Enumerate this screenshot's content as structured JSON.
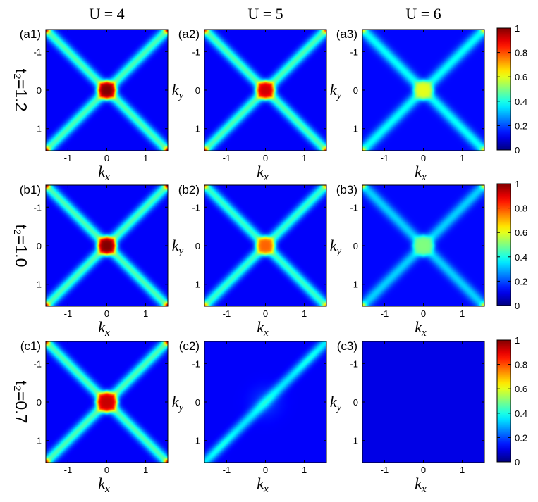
{
  "column_titles": [
    "U = 4",
    "U = 5",
    "U = 6"
  ],
  "row_labels": [
    "t₂=1.2",
    "t₂=1.0",
    "t₂=0.7"
  ],
  "colorbar": {
    "ticks": [
      "1",
      "0.8",
      "0.6",
      "0.4",
      "0.2",
      "0"
    ],
    "range": [
      0,
      1
    ],
    "colormap": "jet"
  },
  "chart_data": {
    "type": "heatmap",
    "x_axis": {
      "label_main": "k",
      "label_sub": "x",
      "range": [
        -1.5708,
        1.5708
      ],
      "ticks": [
        "-1",
        "0",
        "1"
      ]
    },
    "y_axis": {
      "label_main": "k",
      "label_sub": "y",
      "range": [
        -1.5708,
        1.5708
      ],
      "ticks": [
        "-1",
        "0",
        "1"
      ],
      "inverted": true
    },
    "panels": [
      {
        "id": "a1",
        "label": "(a1)",
        "U": 4,
        "t2": 1.2,
        "shape": "cross",
        "center_value": 1.0,
        "arm_value": 0.45,
        "bg_value": 0.12,
        "arm_width": 0.18,
        "center_size": 0.3
      },
      {
        "id": "a2",
        "label": "(a2)",
        "U": 5,
        "t2": 1.2,
        "shape": "cross",
        "center_value": 0.92,
        "arm_value": 0.45,
        "bg_value": 0.12,
        "arm_width": 0.18,
        "center_size": 0.3
      },
      {
        "id": "a3",
        "label": "(a3)",
        "U": 6,
        "t2": 1.2,
        "shape": "cross",
        "center_value": 0.6,
        "arm_value": 0.38,
        "bg_value": 0.13,
        "arm_width": 0.19,
        "center_size": 0.32
      },
      {
        "id": "b1",
        "label": "(b1)",
        "U": 4,
        "t2": 1.0,
        "shape": "cross",
        "center_value": 1.0,
        "arm_value": 0.45,
        "bg_value": 0.12,
        "arm_width": 0.18,
        "center_size": 0.3
      },
      {
        "id": "b2",
        "label": "(b2)",
        "U": 5,
        "t2": 1.0,
        "shape": "cross",
        "center_value": 0.78,
        "arm_value": 0.43,
        "bg_value": 0.12,
        "arm_width": 0.18,
        "center_size": 0.3
      },
      {
        "id": "b3",
        "label": "(b3)",
        "U": 6,
        "t2": 1.0,
        "shape": "cross",
        "center_value": 0.5,
        "arm_value": 0.33,
        "bg_value": 0.13,
        "arm_width": 0.19,
        "center_size": 0.35
      },
      {
        "id": "c1",
        "label": "(c1)",
        "U": 4,
        "t2": 0.7,
        "shape": "cross",
        "center_value": 0.93,
        "arm_value": 0.45,
        "bg_value": 0.12,
        "arm_width": 0.18,
        "center_size": 0.34
      },
      {
        "id": "c2",
        "label": "(c2)",
        "U": 5,
        "t2": 0.7,
        "shape": "diagonal",
        "center_value": 0.38,
        "arm_value": 0.35,
        "bg_value": 0.12,
        "arm_width": 0.18,
        "center_size": 0.0
      },
      {
        "id": "c3",
        "label": "(c3)",
        "U": 6,
        "t2": 0.7,
        "shape": "flat",
        "center_value": 0.1,
        "arm_value": 0.1,
        "bg_value": 0.1,
        "arm_width": 0.0,
        "center_size": 0.0
      }
    ]
  }
}
